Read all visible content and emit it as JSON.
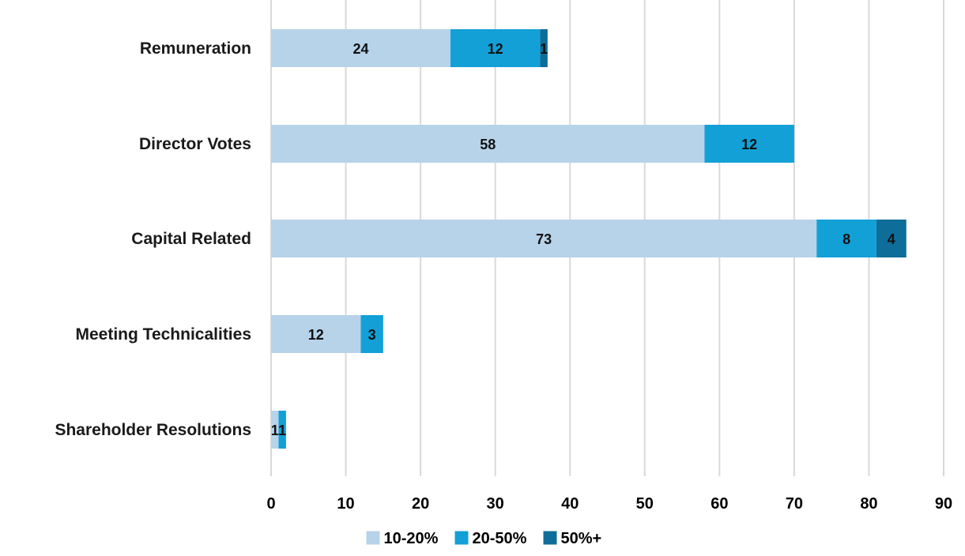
{
  "chart_data": {
    "type": "bar",
    "orientation": "horizontal",
    "stacked": true,
    "categories": [
      "Remuneration",
      "Director Votes",
      "Capital Related",
      "Meeting Technicalities",
      "Shareholder Resolutions"
    ],
    "series": [
      {
        "name": "10-20%",
        "color": "#b7d3ea",
        "values": [
          24,
          58,
          73,
          12,
          1
        ]
      },
      {
        "name": "20-50%",
        "color": "#12a0d7",
        "values": [
          12,
          12,
          8,
          3,
          1
        ]
      },
      {
        "name": "50%+",
        "color": "#0e6d99",
        "values": [
          1,
          0,
          4,
          0,
          0
        ]
      }
    ],
    "xlim": [
      0,
      90
    ],
    "x_ticks": [
      "0",
      "10",
      "20",
      "30",
      "40",
      "50",
      "60",
      "70",
      "80",
      "90"
    ],
    "grid": "vertical",
    "legend_position": "bottom"
  }
}
